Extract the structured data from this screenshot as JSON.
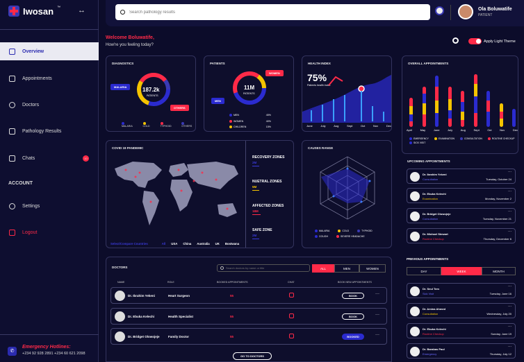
{
  "app": {
    "title": "Iwosan",
    "tm": "™",
    "collapse_icon": "double-arrow-icon"
  },
  "nav": {
    "items": [
      {
        "label": "Overview",
        "icon": "overview-icon"
      },
      {
        "label": "Appointments",
        "icon": "calendar-icon"
      },
      {
        "label": "Doctors",
        "icon": "doctor-icon"
      },
      {
        "label": "Pathology Results",
        "icon": "results-icon"
      },
      {
        "label": "Chats",
        "icon": "chat-icon",
        "badge": "10"
      }
    ],
    "account_heading": "ACCOUNT",
    "settings": "Settings",
    "logout": "Logout"
  },
  "emergency": {
    "title": "Emergency Hotlines:",
    "numbers": "+234 92 928 2891  +234 60 621 2098"
  },
  "search": {
    "placeholder": "Search pathology results"
  },
  "user": {
    "name": "Ola Boluwatife",
    "role": "PATIENT"
  },
  "welcome": {
    "greeting": "Welcome Boluwatife,",
    "sub": "How're you feeling today?",
    "theme_label": "Apply Light Theme"
  },
  "colors": {
    "accent": "#ff2a48",
    "blue": "#2b2bd0",
    "yellow": "#f5c400",
    "navy": "#0e0e2c"
  },
  "diagnostics": {
    "title": "DIAGNOSTICS",
    "center_value": "187.2k",
    "center_sub": "PATIENTS",
    "tag_left": "MALARIA",
    "tag_right": "OTHERS",
    "legend": [
      "MALARIA",
      "COLD",
      "TYPHOID",
      "OTHERS"
    ]
  },
  "patients": {
    "title": "PATIENTS",
    "center_value": "11M",
    "center_sub": "PATIENTS",
    "tag_women": "WOMEN",
    "tag_men": "MEN",
    "rows": [
      {
        "label": "MEN",
        "value": "45%"
      },
      {
        "label": "WOMEN",
        "value": "40%"
      },
      {
        "label": "CHILDREN",
        "value": "15%"
      }
    ]
  },
  "health_index": {
    "title": "HEALTH INDEX",
    "value": "75%",
    "sub": "Patients health index",
    "months": [
      "June",
      "July",
      "Aug",
      "Sept",
      "Oct",
      "Nov",
      "Dec"
    ]
  },
  "overall": {
    "title": "OVERALL APPOINTMENTS",
    "months": [
      "April",
      "May",
      "June",
      "July",
      "Aug",
      "Sept",
      "Oct",
      "Nov",
      "Dec"
    ],
    "legend": [
      "EMERGENCY",
      "EXAMINATION",
      "CONSULTATION",
      "ROUTINE CHECKUP",
      "SICK VISIT"
    ]
  },
  "covid": {
    "title": "COVID 19 PANDEMIC",
    "filter_label": "Select/Compare Countries",
    "countries": [
      "All",
      "USA",
      "China",
      "Australia",
      "UK",
      "Bostwana"
    ],
    "zones": [
      {
        "label": "RECOVERY ZONES",
        "value": "2M"
      },
      {
        "label": "NUETRAL ZONES",
        "value": "5M"
      },
      {
        "label": "AFFECTED ZONES",
        "value": "18M"
      },
      {
        "label": "SAFE ZONE",
        "value": "2M"
      }
    ]
  },
  "causes": {
    "title": "CAUSES RANGE",
    "legend": [
      "MALARIA",
      "COLD",
      "TYPHOID",
      "COUGH",
      "SEVERE HEADACHE"
    ]
  },
  "doctors": {
    "title": "DOCTORS",
    "search_placeholder": "Search doctors by name or title",
    "filters": [
      "ALL",
      "MEN",
      "WOMEN"
    ],
    "headers": [
      "NAME",
      "ROLE",
      "BOOKED APPOINTMENTS",
      "CHAT",
      "BOOK NEW APPOINTMENTS"
    ],
    "rows": [
      {
        "name": "Dr. Ibrahim Yekeni",
        "role": "Heart Surgeon",
        "booked": "55",
        "action": "BOOK"
      },
      {
        "name": "Dr. Ebuka Kelechi",
        "role": "Health Specialist",
        "booked": "55",
        "action": "BOOK"
      },
      {
        "name": "Dr. Bridget Olowojeje",
        "role": "Family Doctor",
        "booked": "55",
        "action": "BOOKED"
      }
    ],
    "go_button": "GO TO DOCTORS"
  },
  "upcoming": {
    "title": "UPCOMING APPOINTMENTS",
    "items": [
      {
        "name": "Dr. Ibrahim Yekeni",
        "type": "Consultation",
        "date": "Tuesday, October 24"
      },
      {
        "name": "Dr. Ebuka Kelechi",
        "type": "Examination",
        "date": "Monday, November 2"
      },
      {
        "name": "Dr. Bridget Olowojeje",
        "type": "Consultation",
        "date": "Tuesday, November 21"
      },
      {
        "name": "Dr. Michael Stewart",
        "type": "Routine Checkup",
        "date": "Thursday, December 6"
      }
    ]
  },
  "previous": {
    "title": "PREVIOUS APPOINTMENTS",
    "tabs": [
      "DAY",
      "WEEK",
      "MONTH"
    ],
    "items": [
      {
        "name": "Dr. Seul Tem",
        "type": "Sick Visit",
        "date": "Tuesday, June 16"
      },
      {
        "name": "Dr. Amina Ahmed",
        "type": "Consultation",
        "date": "Wednesday, July 20"
      },
      {
        "name": "Dr. Ebuka Kelechi",
        "type": "Routine Checkup",
        "date": "Sunday, June 19"
      },
      {
        "name": "Dr. Barabas Paul",
        "type": "Emergency",
        "date": "Thursday, July 12"
      }
    ]
  }
}
